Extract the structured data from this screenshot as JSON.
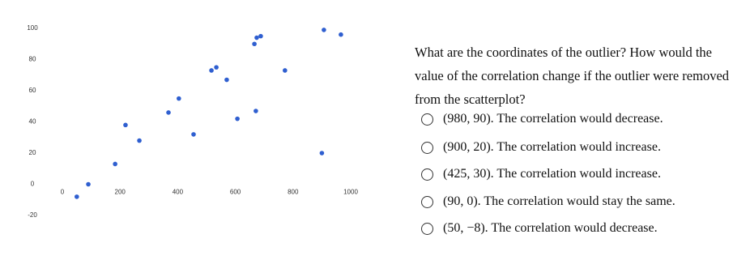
{
  "chart_data": {
    "type": "scatter",
    "x": [
      50,
      90,
      183,
      219,
      267,
      368,
      404,
      455,
      517,
      534,
      570,
      607,
      666,
      674,
      688,
      671,
      772,
      900,
      907,
      966
    ],
    "values": [
      -8,
      0,
      13,
      38,
      28,
      46,
      55,
      32,
      73,
      75,
      67,
      42,
      90,
      94,
      95,
      47,
      73,
      20,
      99,
      96
    ],
    "color": "#2f5fd0",
    "xlim": [
      0,
      1000
    ],
    "xticks": [
      0,
      200,
      400,
      600,
      800,
      1000
    ],
    "ylim": [
      -20,
      100
    ],
    "yticks": [
      -20,
      0,
      20,
      40,
      60,
      80,
      100
    ]
  },
  "question": {
    "text": "What are the coordinates of the outlier? How would the value of the correlation change if the outlier were removed from the scatterplot?",
    "options": [
      "(980, 90). The correlation would decrease.",
      "(900, 20). The correlation would increase.",
      "(425, 30). The correlation would increase.",
      "(90, 0). The correlation would stay the same.",
      "(50, −8). The correlation would decrease."
    ]
  }
}
